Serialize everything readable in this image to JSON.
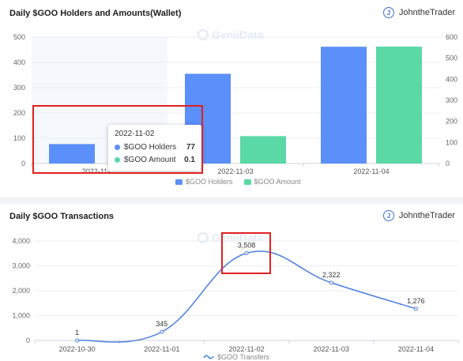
{
  "top": {
    "title": "Daily $GOO Holders and Amounts(Wallet)",
    "user": "JohntheTrader",
    "user_initial": "J",
    "watermark": "GeniiData",
    "tooltip": {
      "date": "2022-11-02",
      "rows": [
        {
          "label": "$GOO Holders",
          "value": "77"
        },
        {
          "label": "$GOO Amount",
          "value": "0.1"
        }
      ]
    }
  },
  "bottom": {
    "title": "Daily $GOO Transactions",
    "user": "JohntheTrader",
    "user_initial": "J",
    "watermark": "GeniiData"
  },
  "chart_data": [
    {
      "type": "bar",
      "categories": [
        "2022-11-02",
        "2022-11-03",
        "2022-11-04"
      ],
      "visible_category_labels": [
        "2022-11-…",
        "2022-11-03",
        "2022-11-04"
      ],
      "series": [
        {
          "name": "$GOO Holders",
          "axis": "left",
          "color": "#5b8ff9",
          "values": [
            77,
            355,
            462
          ]
        },
        {
          "name": "$GOO Amount",
          "axis": "right",
          "color": "#5ad8a6",
          "values": [
            0.1,
            130,
            555
          ]
        }
      ],
      "y_left": {
        "ylim": [
          0,
          500
        ],
        "ticks": [
          "0",
          "100",
          "200",
          "300",
          "400",
          "500"
        ]
      },
      "y_right": {
        "ylim": [
          0,
          600
        ],
        "ticks": [
          "0",
          "100",
          "200",
          "300",
          "400",
          "500",
          "600"
        ]
      },
      "legend": "bottom",
      "grid": true
    },
    {
      "type": "line",
      "x": [
        "2022-10-30",
        "2022-11-01",
        "2022-11-02",
        "2022-11-03",
        "2022-11-04"
      ],
      "series": [
        {
          "name": "$GOO Transfers",
          "color": "#4a7fe0",
          "values": [
            1,
            345,
            3508,
            2322,
            1276
          ],
          "labels": [
            "1",
            "345",
            "3,508",
            "2,322",
            "1,276"
          ]
        }
      ],
      "y": {
        "ylim": [
          0,
          4000
        ],
        "ticks": [
          "0",
          "1,000",
          "2,000",
          "3,000",
          "4,000"
        ]
      },
      "legend": "bottom",
      "grid": true
    }
  ]
}
